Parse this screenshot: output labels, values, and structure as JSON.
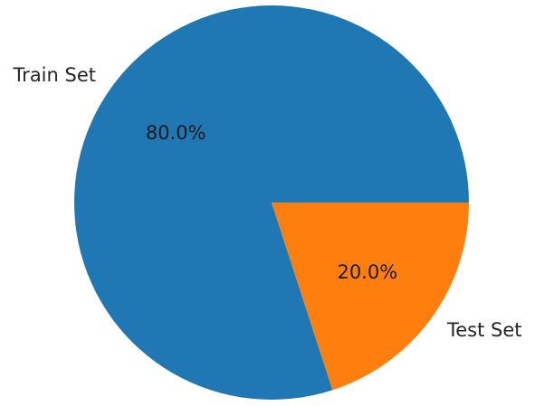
{
  "chart_data": {
    "type": "pie",
    "title": "",
    "slices": [
      {
        "label": "Train Set",
        "value": 80.0,
        "pct_label": "80.0%",
        "color": "#1f77b4"
      },
      {
        "label": "Test Set",
        "value": 20.0,
        "pct_label": "20.0%",
        "color": "#ff7f0e"
      }
    ],
    "start_angle": 0,
    "direction": "counterclockwise",
    "legend": "none"
  }
}
